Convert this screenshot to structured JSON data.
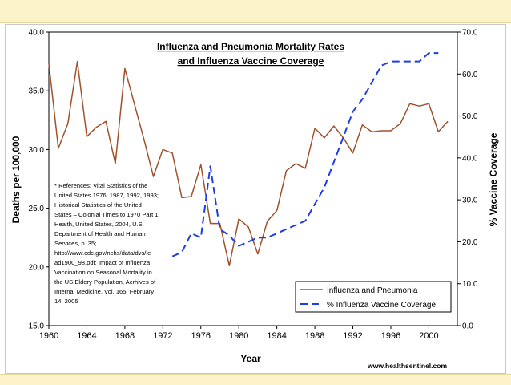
{
  "chart_data": {
    "type": "line",
    "title": [
      "Influenza and Pneumonia Mortality Rates",
      "and Influenza Vaccine Coverage"
    ],
    "xlabel": "Year",
    "ylabel": "Deaths per 100,000",
    "y2label": "% Vaccine Coverage",
    "xlim": [
      1960,
      2003
    ],
    "ylim": [
      15,
      40
    ],
    "y2lim": [
      0,
      70
    ],
    "xticks": [
      1960,
      1964,
      1968,
      1972,
      1976,
      1980,
      1984,
      1988,
      1992,
      1996,
      2000
    ],
    "xtick_labels": [
      "1960",
      "1964",
      "1968",
      "1972",
      "1976",
      "1980",
      "1984",
      "1988",
      "1992",
      "1996",
      "2000"
    ],
    "yticks": [
      15,
      20,
      25,
      30,
      35,
      40
    ],
    "ytick_labels": [
      "15.0",
      "20.0",
      "25.0",
      "30.0",
      "35.0",
      "40.0"
    ],
    "y2ticks": [
      0,
      10,
      20,
      30,
      40,
      50,
      60,
      70
    ],
    "y2tick_labels": [
      "0.0",
      "10.0",
      "20.0",
      "30.0",
      "40.0",
      "50.0",
      "60.0",
      "70.0"
    ],
    "grid": false,
    "legend_position": "bottom-right",
    "series": [
      {
        "name": "Influenza and Pneumonia",
        "axis": "left",
        "color": "#a0522d",
        "style": "solid",
        "x": [
          1960,
          1961,
          1962,
          1963,
          1964,
          1965,
          1966,
          1967,
          1968,
          1969,
          1970,
          1971,
          1972,
          1973,
          1974,
          1975,
          1976,
          1977,
          1978,
          1979,
          1980,
          1981,
          1982,
          1983,
          1984,
          1985,
          1986,
          1987,
          1988,
          1989,
          1990,
          1991,
          1992,
          1993,
          1994,
          1995,
          1996,
          1997,
          1998,
          1999,
          2000,
          2001,
          2002
        ],
        "values": [
          37.3,
          30.1,
          32.2,
          37.5,
          31.1,
          31.9,
          32.4,
          28.8,
          36.9,
          33.9,
          30.9,
          27.7,
          30.0,
          29.7,
          25.9,
          26.0,
          28.7,
          23.7,
          23.7,
          20.1,
          24.1,
          23.4,
          21.1,
          23.9,
          24.8,
          28.2,
          28.8,
          28.4,
          31.8,
          31.0,
          32.0,
          31.0,
          29.7,
          32.1,
          31.5,
          31.6,
          31.6,
          32.2,
          33.9,
          33.7,
          33.9,
          31.5,
          32.4
        ]
      },
      {
        "name": "% Influenza Vaccine Coverage",
        "axis": "right",
        "color": "#1f3fe0",
        "style": "dashed",
        "x": [
          1973,
          1974,
          1975,
          1976,
          1977,
          1978,
          1979,
          1980,
          1981,
          1982,
          1983,
          1984,
          1985,
          1986,
          1987,
          1988,
          1989,
          1990,
          1991,
          1992,
          1993,
          1994,
          1995,
          1996,
          1997,
          1998,
          1999,
          2000,
          2001
        ],
        "values": [
          16.5,
          17.5,
          22.0,
          21.0,
          38.0,
          23.0,
          21.5,
          19.0,
          20.0,
          21.0,
          21.0,
          22.0,
          23.0,
          24.0,
          25.0,
          29.0,
          33.0,
          39.0,
          45.0,
          51.0,
          54.0,
          58.0,
          62.0,
          63.0,
          63.0,
          63.0,
          63.0,
          65.0,
          65.0
        ]
      }
    ],
    "annotations": {
      "references": [
        "* References: Vital Statistics of the",
        "United States 1976, 1987, 1992, 1993;",
        "Historical Statistics of the United",
        "States – Colonial Times to 1970 Part 1;",
        "Health, United States, 2004, U.S.",
        "Department of Health and Human",
        "Services, p. 35;",
        "http://www.cdc.gov/nchs/data/dvs/le",
        "ad1900_98.pdf; Impact of Influenza",
        "Vaccination on Seasonal Mortality in",
        "the US Eldery Population, Acrhives of",
        "Internal Medicine, Vol. 165, February",
        "14. 2005"
      ],
      "source": "www.healthsentinel.com"
    }
  }
}
